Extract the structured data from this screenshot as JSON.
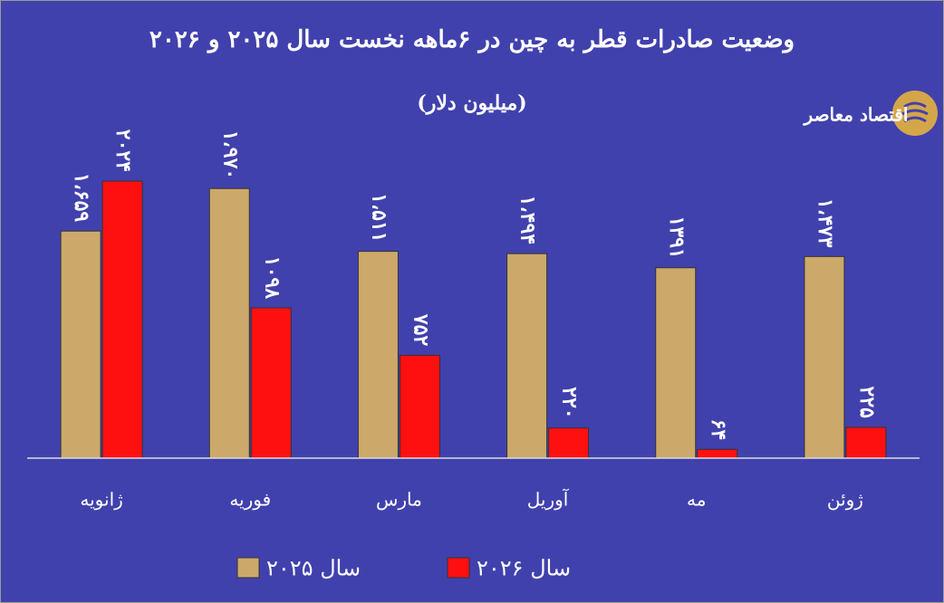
{
  "chart_data": {
    "type": "bar",
    "title": "وضعیت صادرات قطر به چین در ۶ماهه نخست سال ۲۰۲۵ و ۲۰۲۶",
    "subtitle": "(میلیون دلار)",
    "logo_text": "اقتصاد معاصر",
    "categories": [
      "ژانویه",
      "فوریه",
      "مارس",
      "آوریل",
      "مه",
      "ژوئن"
    ],
    "series": [
      {
        "name": "سال ۲۰۲۵",
        "color": "#cca96a",
        "values": [
          1659,
          1970,
          1511,
          1494,
          1391,
          1473
        ],
        "value_labels": [
          "۱،۶۵۹",
          "۱،۹۷۰",
          "۱،۵۱۱",
          "۱،۴۹۴",
          "۱۳۹۱",
          "۱،۴۷۳"
        ]
      },
      {
        "name": "سال ۲۰۲۶",
        "color": "#ff1010",
        "values": [
          2024,
          1098,
          752,
          220,
          64,
          225
        ],
        "value_labels": [
          "۲۰۲۴",
          "۱۰۹۸",
          "۷۵۲",
          "۲۲۰",
          "۶۴",
          "۲۲۵"
        ]
      }
    ],
    "ylim": [
      0,
      2150
    ],
    "grid": false,
    "legend": "bottom"
  }
}
